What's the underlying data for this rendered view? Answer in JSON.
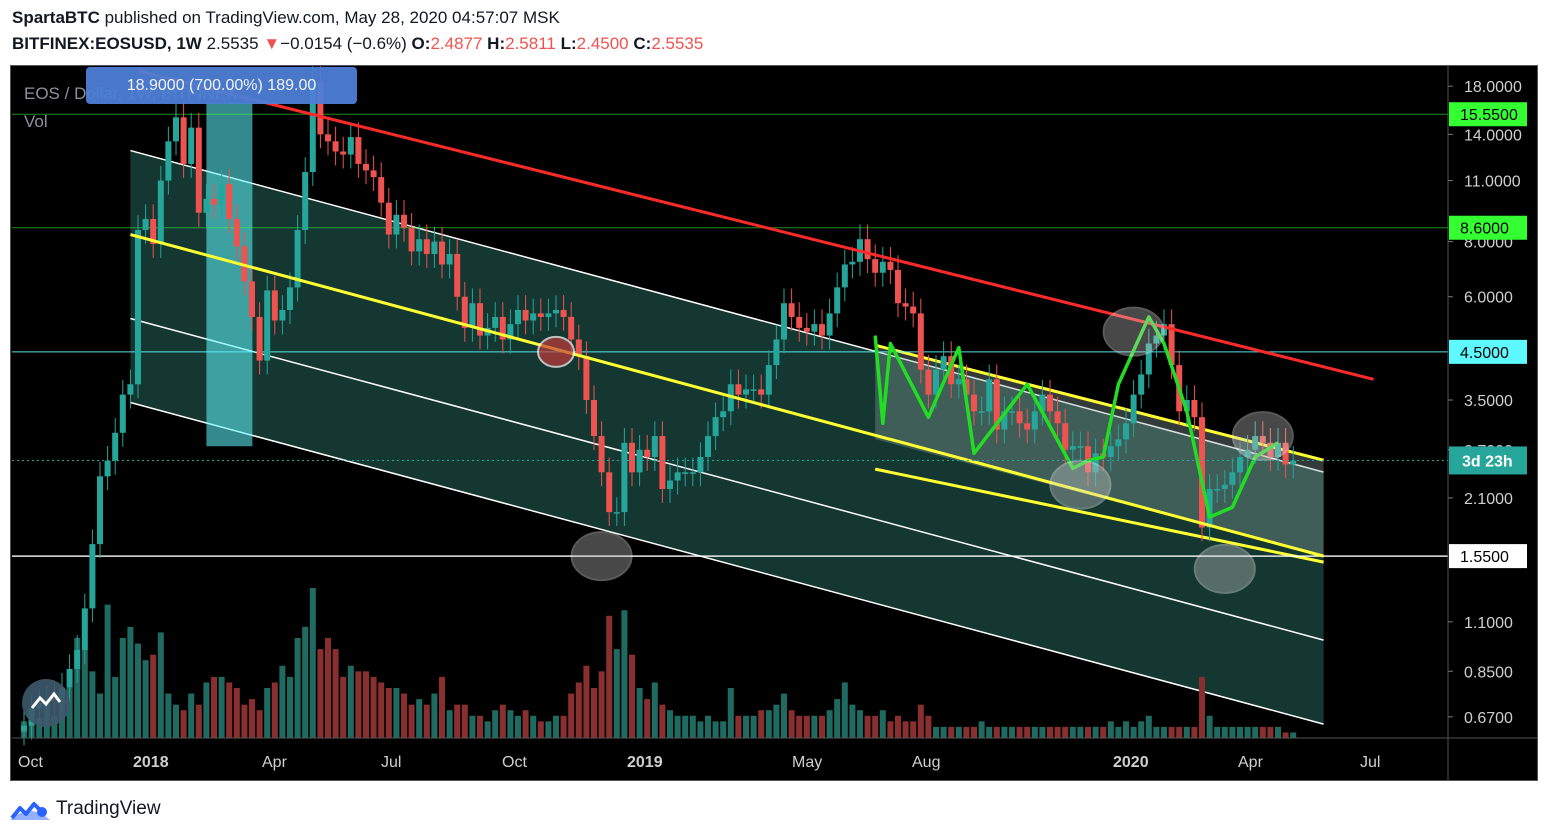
{
  "header": {
    "author": "SpartaBTC",
    "published_text": "published on TradingView.com, May 28, 2020 04:57:07 MSK",
    "symbol": "BITFINEX:EOSUSD, 1W",
    "last": "2.5535",
    "change_arrow": "▼",
    "change": "−0.0154 (−0.6%)",
    "o_label": "O:",
    "o_value": "2.4877",
    "h_label": "H:",
    "h_value": "2.5811",
    "l_label": "L:",
    "l_value": "2.4500",
    "c_label": "C:",
    "c_value": "2.5535"
  },
  "legend": {
    "title": "EOS / Dollar, 1W, BITFINEX",
    "vol": "Vol"
  },
  "measure_label": "18.9000 (700.00%) 189.00",
  "footer": {
    "brand": "TradingView"
  },
  "colors": {
    "up": "#26a69a",
    "down": "#ef5350",
    "vol_up": "#1f6b61",
    "vol_down": "#8a2f2f",
    "resistance": "#ff2a2a",
    "yellow": "#ffff33",
    "green_path": "#22dd22",
    "level_line_green": "#3aff3a",
    "level_line_cyan": "#5ef9ff",
    "level_line_white": "#ffffff",
    "channel_fill": "#1b4a42",
    "price_tag": "#26a69a"
  },
  "chart_data": {
    "type": "candlestick",
    "symbol": "EOSUSD",
    "interval": "1W",
    "exchange": "BITFINEX",
    "y_scale": "log",
    "ylim": [
      0.6,
      20
    ],
    "y_ticks": [
      "18.0000",
      "14.0000",
      "11.0000",
      "8.0000",
      "6.0000",
      "3.5000",
      "2.7000",
      "2.1000",
      "1.1000",
      "0.8500",
      "0.6700"
    ],
    "x_ticks": [
      "Oct",
      "2018",
      "Apr",
      "Jul",
      "Oct",
      "2019",
      "May",
      "Aug",
      "2020",
      "Apr",
      "Jul"
    ],
    "x_ticks_bold": [
      "2018",
      "2019",
      "2020"
    ],
    "level_labels": [
      {
        "value": 15.55,
        "label": "15.5500",
        "color": "green"
      },
      {
        "value": 8.6,
        "label": "8.6000",
        "color": "green"
      },
      {
        "value": 4.5,
        "label": "4.5000",
        "color": "cyan"
      },
      {
        "value": 1.55,
        "label": "1.5500",
        "color": "white"
      }
    ],
    "last_price": 2.5535,
    "countdown": "3d 23h",
    "closes": [
      0.64,
      0.7,
      0.72,
      0.73,
      0.74,
      0.78,
      0.86,
      0.95,
      1.18,
      1.65,
      2.35,
      2.55,
      2.95,
      3.6,
      3.8,
      8.5,
      9.0,
      7.9,
      11.0,
      13.5,
      15.3,
      12.0,
      14.5,
      9.3,
      10.0,
      9.7,
      10.8,
      9.0,
      7.8,
      6.5,
      5.4,
      4.3,
      6.2,
      5.3,
      5.6,
      6.3,
      8.5,
      11.5,
      18.5,
      14.0,
      13.5,
      12.8,
      12.6,
      13.8,
      12.0,
      11.6,
      11.2,
      9.8,
      8.3,
      9.2,
      8.6,
      7.6,
      8.1,
      7.5,
      8.0,
      7.1,
      7.5,
      6.0,
      5.1,
      5.8,
      4.9,
      5.1,
      5.4,
      4.8,
      5.2,
      5.6,
      5.3,
      5.5,
      5.4,
      5.5,
      5.6,
      5.4,
      4.8,
      4.4,
      3.5,
      2.9,
      2.4,
      1.95,
      1.95,
      2.8,
      2.4,
      2.7,
      2.6,
      2.9,
      2.2,
      2.3,
      2.4,
      2.4,
      2.4,
      2.6,
      2.9,
      3.2,
      3.3,
      3.8,
      3.6,
      3.7,
      3.7,
      3.6,
      4.2,
      4.8,
      5.8,
      5.4,
      5.1,
      5.0,
      5.2,
      4.9,
      5.5,
      6.3,
      7.1,
      7.2,
      8.1,
      7.3,
      6.8,
      7.2,
      6.9,
      5.8,
      5.7,
      5.5,
      4.1,
      3.6,
      4.1,
      4.4,
      3.8,
      3.9,
      3.6,
      3.3,
      3.3,
      3.9,
      3.0,
      3.3,
      3.3,
      3.1,
      3.0,
      3.3,
      3.6,
      3.3,
      3.1,
      2.7,
      2.75,
      2.75,
      2.4,
      2.65,
      2.6,
      2.75,
      2.85,
      3.1,
      3.6,
      4.0,
      4.7,
      4.9,
      5.2,
      4.2,
      3.3,
      3.5,
      3.2,
      1.8,
      2.2,
      2.2,
      2.25,
      2.4,
      2.6,
      2.7,
      2.9,
      2.8,
      2.6,
      2.8,
      2.5,
      2.55
    ],
    "resistance_line": {
      "from": {
        "week": 15,
        "value": 19.5
      },
      "to": {
        "week": 171,
        "value": 3.9
      }
    },
    "regression_channel": {
      "from_week": 14,
      "to_week": 171,
      "center_start": 8.3,
      "center_end": 1.55
    },
    "highlighted_channel": {
      "from_week": 112,
      "to_week": 171
    },
    "circled_points": [
      {
        "week": 76,
        "value": 1.55
      },
      {
        "week": 146,
        "value": 5.0
      },
      {
        "week": 158,
        "value": 1.45
      },
      {
        "week": 163,
        "value": 2.9
      },
      {
        "week": 139,
        "value": 2.25
      },
      {
        "week": 70,
        "value": 4.5
      }
    ],
    "green_path": [
      {
        "week": 112,
        "value": 4.9
      },
      {
        "week": 113,
        "value": 3.1
      },
      {
        "week": 114,
        "value": 4.7
      },
      {
        "week": 119,
        "value": 3.2
      },
      {
        "week": 123,
        "value": 4.6
      },
      {
        "week": 125,
        "value": 2.65
      },
      {
        "week": 132,
        "value": 3.8
      },
      {
        "week": 138,
        "value": 2.45
      },
      {
        "week": 140,
        "value": 2.55
      },
      {
        "week": 142,
        "value": 2.6
      },
      {
        "week": 144,
        "value": 3.8
      },
      {
        "week": 148,
        "value": 5.4
      },
      {
        "week": 150,
        "value": 4.7
      },
      {
        "week": 153,
        "value": 3.3
      },
      {
        "week": 156,
        "value": 1.9
      },
      {
        "week": 159,
        "value": 2.0
      },
      {
        "week": 162,
        "value": 2.6
      },
      {
        "week": 165,
        "value": 2.8
      }
    ],
    "volumes": [
      0.15,
      0.25,
      0.18,
      0.3,
      0.2,
      0.35,
      0.45,
      0.9,
      0.8,
      0.6,
      0.4,
      1.2,
      0.55,
      0.9,
      1.0,
      0.85,
      0.7,
      0.75,
      0.95,
      0.4,
      0.3,
      0.25,
      0.4,
      0.3,
      0.5,
      0.55,
      0.55,
      0.5,
      0.45,
      0.3,
      0.35,
      0.25,
      0.45,
      0.5,
      0.65,
      0.55,
      0.9,
      1.0,
      1.35,
      0.8,
      0.9,
      0.8,
      0.55,
      0.65,
      0.6,
      0.6,
      0.55,
      0.5,
      0.45,
      0.45,
      0.4,
      0.3,
      0.35,
      0.3,
      0.4,
      0.55,
      0.25,
      0.3,
      0.3,
      0.2,
      0.2,
      0.15,
      0.25,
      0.3,
      0.25,
      0.2,
      0.25,
      0.2,
      0.15,
      0.15,
      0.2,
      0.2,
      0.4,
      0.5,
      0.65,
      0.45,
      0.6,
      1.1,
      0.8,
      1.15,
      0.75,
      0.45,
      0.35,
      0.5,
      0.3,
      0.25,
      0.2,
      0.2,
      0.2,
      0.15,
      0.2,
      0.15,
      0.15,
      0.45,
      0.2,
      0.2,
      0.2,
      0.25,
      0.25,
      0.3,
      0.4,
      0.25,
      0.2,
      0.2,
      0.2,
      0.2,
      0.25,
      0.35,
      0.5,
      0.3,
      0.25,
      0.2,
      0.2,
      0.25,
      0.15,
      0.2,
      0.15,
      0.15,
      0.3,
      0.2,
      0.1,
      0.1,
      0.1,
      0.1,
      0.1,
      0.1,
      0.15,
      0.1,
      0.1,
      0.1,
      0.1,
      0.1,
      0.1,
      0.1,
      0.1,
      0.1,
      0.1,
      0.1,
      0.1,
      0.1,
      0.1,
      0.1,
      0.1,
      0.15,
      0.1,
      0.15,
      0.1,
      0.15,
      0.2,
      0.1,
      0.1,
      0.1,
      0.1,
      0.1,
      0.1,
      0.55,
      0.2,
      0.1,
      0.1,
      0.1,
      0.1,
      0.1,
      0.1,
      0.1,
      0.1,
      0.1,
      0.05,
      0.05
    ]
  }
}
